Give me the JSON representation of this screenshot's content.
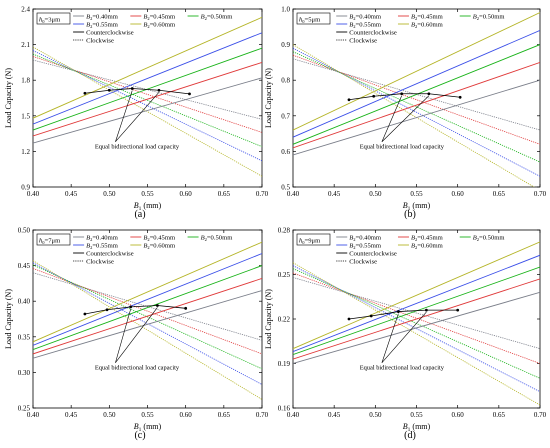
{
  "legend_colors": [
    "#7b7f8a",
    "#e03a3a",
    "#19b319",
    "#3b4fe8",
    "#b5b528"
  ],
  "chart_data": [
    {
      "type": "line",
      "panel_label": "(a)",
      "h0_prefix": "h",
      "h0_sub": "0",
      "h0_suffix": "=3μm",
      "xlabel_var": "B",
      "xlabel_sub": "1",
      "xlabel_unit": " (mm)",
      "ylabel": "Load Capacity (N)",
      "xlim": [
        0.4,
        0.7
      ],
      "ylim": [
        0.9,
        2.4
      ],
      "xticks": [
        "0.40",
        "0.45",
        "0.50",
        "0.55",
        "0.60",
        "0.65",
        "0.70"
      ],
      "yticks": [
        "0.9",
        "1.2",
        "1.5",
        "1.8",
        "2.1",
        "2.4"
      ],
      "legend": [
        "B2=0.40mm",
        "B2=0.45mm",
        "B2=0.50mm",
        "B2=0.55mm",
        "B2=0.60mm"
      ],
      "legend_prefix": "B",
      "legend_sub": "2",
      "legend_vals": [
        "=0.40mm",
        "=0.45mm",
        "=0.50mm",
        "=0.55mm",
        "=0.60mm"
      ],
      "ccw_label": "Counterclockwise",
      "cw_label": "Clockwise",
      "annotation": "Equal bidirectional load capacity",
      "x": [
        0.4,
        0.7
      ],
      "ccw_series": [
        {
          "y": [
            1.27,
            1.82
          ]
        },
        {
          "y": [
            1.33,
            1.95
          ]
        },
        {
          "y": [
            1.38,
            2.07
          ]
        },
        {
          "y": [
            1.43,
            2.2
          ]
        },
        {
          "y": [
            1.48,
            2.33
          ]
        }
      ],
      "cw_series": [
        {
          "y": [
            1.97,
            1.47
          ]
        },
        {
          "y": [
            2.0,
            1.36
          ]
        },
        {
          "y": [
            2.02,
            1.24
          ]
        },
        {
          "y": [
            2.05,
            1.12
          ]
        },
        {
          "y": [
            2.08,
            0.99
          ]
        }
      ],
      "equal_points": {
        "x": [
          0.468,
          0.5,
          0.53,
          0.565,
          0.605
        ],
        "y": [
          1.69,
          1.715,
          1.73,
          1.715,
          1.685
        ]
      }
    },
    {
      "type": "line",
      "panel_label": "(b)",
      "h0_prefix": "h",
      "h0_sub": "0",
      "h0_suffix": "=5μm",
      "xlabel_var": "B",
      "xlabel_sub": "1",
      "xlabel_unit": " (mm)",
      "ylabel": "Load Capacity (N)",
      "xlim": [
        0.4,
        0.7
      ],
      "ylim": [
        0.5,
        1.0
      ],
      "xticks": [
        "0.40",
        "0.45",
        "0.50",
        "0.55",
        "0.60",
        "0.65",
        "0.70"
      ],
      "yticks": [
        "0.5",
        "0.6",
        "0.7",
        "0.8",
        "0.9",
        "1.0"
      ],
      "legend": [
        "B2=0.40mm",
        "B2=0.45mm",
        "B2=0.50mm",
        "B2=0.55mm",
        "B2=0.60mm"
      ],
      "legend_prefix": "B",
      "legend_sub": "2",
      "legend_vals": [
        "=0.40mm",
        "=0.45mm",
        "=0.50mm",
        "=0.55mm",
        "=0.60mm"
      ],
      "ccw_label": "Counterclockwise",
      "cw_label": "Clockwise",
      "annotation": "Equal bidirectional load capacity",
      "x": [
        0.4,
        0.7
      ],
      "ccw_series": [
        {
          "y": [
            0.59,
            0.8
          ]
        },
        {
          "y": [
            0.61,
            0.85
          ]
        },
        {
          "y": [
            0.62,
            0.9
          ]
        },
        {
          "y": [
            0.64,
            0.94
          ]
        },
        {
          "y": [
            0.66,
            0.99
          ]
        }
      ],
      "cw_series": [
        {
          "y": [
            0.86,
            0.66
          ]
        },
        {
          "y": [
            0.87,
            0.62
          ]
        },
        {
          "y": [
            0.88,
            0.57
          ]
        },
        {
          "y": [
            0.89,
            0.53
          ]
        },
        {
          "y": [
            0.9,
            0.49
          ]
        }
      ],
      "equal_points": {
        "x": [
          0.468,
          0.498,
          0.532,
          0.565,
          0.603
        ],
        "y": [
          0.745,
          0.755,
          0.762,
          0.762,
          0.752
        ]
      }
    },
    {
      "type": "line",
      "panel_label": "(c)",
      "h0_prefix": "h",
      "h0_sub": "0",
      "h0_suffix": "=7μm",
      "xlabel_var": "B",
      "xlabel_sub": "1",
      "xlabel_unit": " (mm)",
      "ylabel": "Load Capacity (N)",
      "xlim": [
        0.4,
        0.7
      ],
      "ylim": [
        0.25,
        0.5
      ],
      "xticks": [
        "0.40",
        "0.45",
        "0.50",
        "0.55",
        "0.60",
        "0.65",
        "0.70"
      ],
      "yticks": [
        "0.25",
        "0.30",
        "0.35",
        "0.40",
        "0.45",
        "0.50"
      ],
      "legend": [
        "B2=0.40mm",
        "B2=0.45mm",
        "B2=0.50mm",
        "B2=0.55mm",
        "B2=0.60mm"
      ],
      "legend_prefix": "B",
      "legend_sub": "2",
      "legend_vals": [
        "=0.40mm",
        "=0.45mm",
        "=0.50mm",
        "=0.55mm",
        "=0.60mm"
      ],
      "ccw_label": "Counterclockwise",
      "cw_label": "Clockwise",
      "annotation": "Equal bidirectional load capacity",
      "x": [
        0.4,
        0.7
      ],
      "ccw_series": [
        {
          "y": [
            0.32,
            0.415
          ]
        },
        {
          "y": [
            0.326,
            0.432
          ]
        },
        {
          "y": [
            0.332,
            0.45
          ]
        },
        {
          "y": [
            0.338,
            0.467
          ]
        },
        {
          "y": [
            0.343,
            0.483
          ]
        }
      ],
      "cw_series": [
        {
          "y": [
            0.44,
            0.345
          ]
        },
        {
          "y": [
            0.446,
            0.326
          ]
        },
        {
          "y": [
            0.451,
            0.305
          ]
        },
        {
          "y": [
            0.454,
            0.283
          ]
        },
        {
          "y": [
            0.457,
            0.262
          ]
        }
      ],
      "equal_points": {
        "x": [
          0.468,
          0.497,
          0.528,
          0.563,
          0.6
        ],
        "y": [
          0.382,
          0.388,
          0.392,
          0.394,
          0.39
        ]
      }
    },
    {
      "type": "line",
      "panel_label": "(d)",
      "h0_prefix": "h",
      "h0_sub": "0",
      "h0_suffix": "=9μm",
      "xlabel_var": "B",
      "xlabel_sub": "1",
      "xlabel_unit": " (mm)",
      "ylabel": "Load Capacity (N)",
      "xlim": [
        0.4,
        0.7
      ],
      "ylim": [
        0.16,
        0.28
      ],
      "xticks": [
        "0.40",
        "0.45",
        "0.50",
        "0.55",
        "0.60",
        "0.65",
        "0.70"
      ],
      "yticks": [
        "0.16",
        "0.19",
        "0.22",
        "0.25",
        "0.28"
      ],
      "legend": [
        "B2=0.40mm",
        "B2=0.45mm",
        "B2=0.50mm",
        "B2=0.55mm",
        "B2=0.60mm"
      ],
      "legend_prefix": "B",
      "legend_sub": "2",
      "legend_vals": [
        "=0.40mm",
        "=0.45mm",
        "=0.50mm",
        "=0.55mm",
        "=0.60mm"
      ],
      "ccw_label": "Counterclockwise",
      "cw_label": "Clockwise",
      "annotation": "Equal bidirectional load capacity",
      "x": [
        0.4,
        0.7
      ],
      "ccw_series": [
        {
          "y": [
            0.19,
            0.238
          ]
        },
        {
          "y": [
            0.193,
            0.247
          ]
        },
        {
          "y": [
            0.196,
            0.255
          ]
        },
        {
          "y": [
            0.198,
            0.263
          ]
        },
        {
          "y": [
            0.2,
            0.272
          ]
        }
      ],
      "cw_series": [
        {
          "y": [
            0.248,
            0.2
          ]
        },
        {
          "y": [
            0.251,
            0.19
          ]
        },
        {
          "y": [
            0.254,
            0.18
          ]
        },
        {
          "y": [
            0.256,
            0.171
          ]
        },
        {
          "y": [
            0.258,
            0.162
          ]
        }
      ],
      "equal_points": {
        "x": [
          0.468,
          0.495,
          0.528,
          0.562,
          0.6
        ],
        "y": [
          0.22,
          0.222,
          0.225,
          0.226,
          0.226
        ]
      }
    }
  ]
}
